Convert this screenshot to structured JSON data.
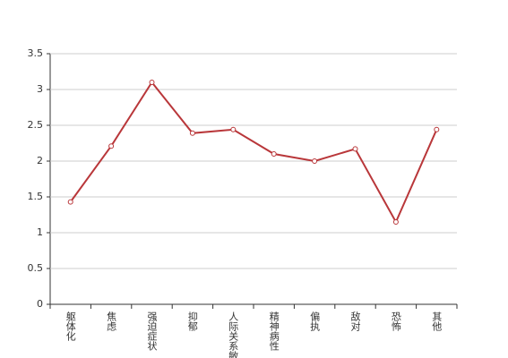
{
  "chart_data": {
    "type": "line",
    "categories": [
      "躯体化",
      "焦虑",
      "强迫症状",
      "抑郁",
      "人际关系敏感",
      "精神病性",
      "偏执",
      "敌对",
      "恐怖",
      "其他"
    ],
    "values": [
      1.43,
      2.21,
      3.1,
      2.39,
      2.44,
      2.1,
      2.0,
      2.17,
      1.15,
      2.44
    ],
    "color": "#b9373a",
    "ylim": [
      0,
      3.5
    ],
    "yticks": [
      0,
      0.5,
      1,
      1.5,
      2,
      2.5,
      3,
      3.5
    ],
    "grid": true
  }
}
